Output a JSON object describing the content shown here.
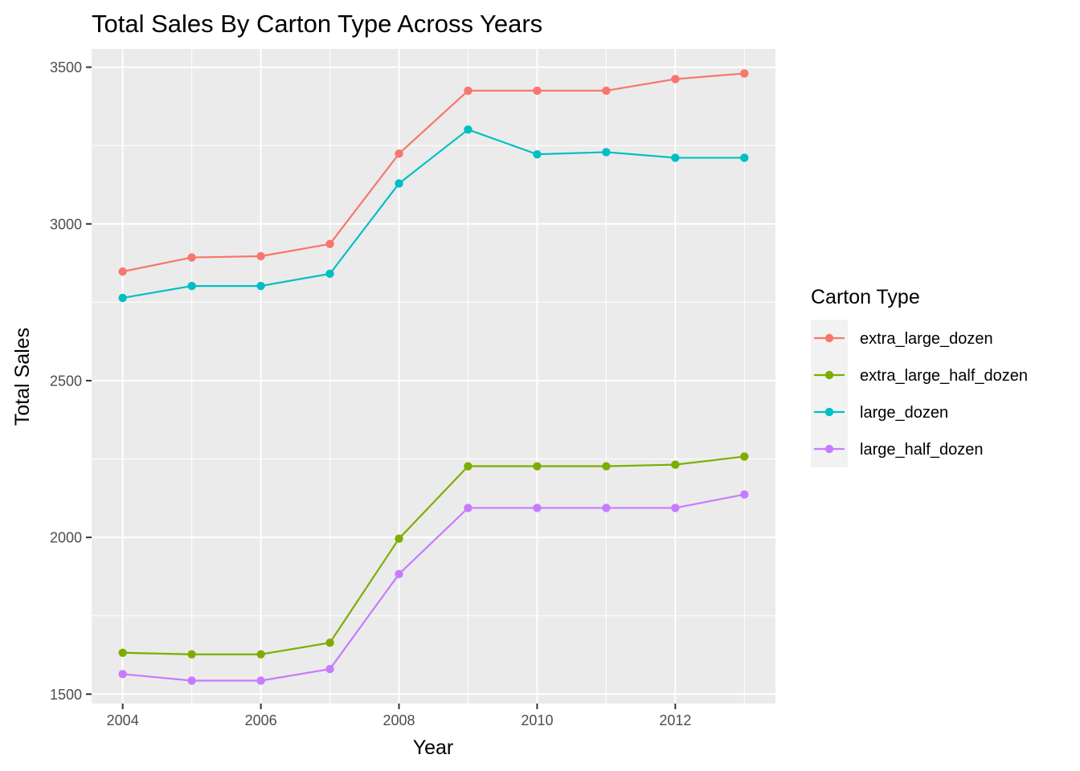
{
  "chart_data": {
    "type": "line",
    "title": "Total Sales By Carton Type Across Years",
    "xlabel": "Year",
    "ylabel": "Total Sales",
    "x": [
      2004,
      2005,
      2006,
      2007,
      2008,
      2009,
      2010,
      2011,
      2012,
      2013
    ],
    "xlim": [
      2003.55,
      2013.45
    ],
    "ylim": [
      1470,
      3558
    ],
    "x_ticks": [
      2004,
      2006,
      2008,
      2010,
      2012
    ],
    "x_tick_labels": [
      "2004",
      "2006",
      "2008",
      "2010",
      "2012"
    ],
    "y_ticks": [
      1500,
      2000,
      2500,
      3000,
      3500
    ],
    "y_tick_labels": [
      "1500",
      "2000",
      "2500",
      "3000",
      "3500"
    ],
    "grid": true,
    "legend": {
      "title": "Carton Type",
      "position": "right"
    },
    "series": [
      {
        "name": "extra_large_dozen",
        "color": "#F8766D",
        "values": [
          2848,
          2893,
          2897,
          2936,
          3224,
          3425,
          3425,
          3425,
          3462,
          3480
        ]
      },
      {
        "name": "extra_large_half_dozen",
        "color": "#7CAE00",
        "values": [
          1632,
          1627,
          1627,
          1664,
          1996,
          2227,
          2227,
          2227,
          2232,
          2258
        ]
      },
      {
        "name": "large_dozen",
        "color": "#00BFC4",
        "values": [
          2764,
          2802,
          2802,
          2841,
          3129,
          3301,
          3222,
          3229,
          3211,
          3211
        ]
      },
      {
        "name": "large_half_dozen",
        "color": "#C77CFF",
        "values": [
          1564,
          1543,
          1543,
          1580,
          1883,
          2094,
          2094,
          2094,
          2094,
          2137
        ]
      }
    ]
  }
}
